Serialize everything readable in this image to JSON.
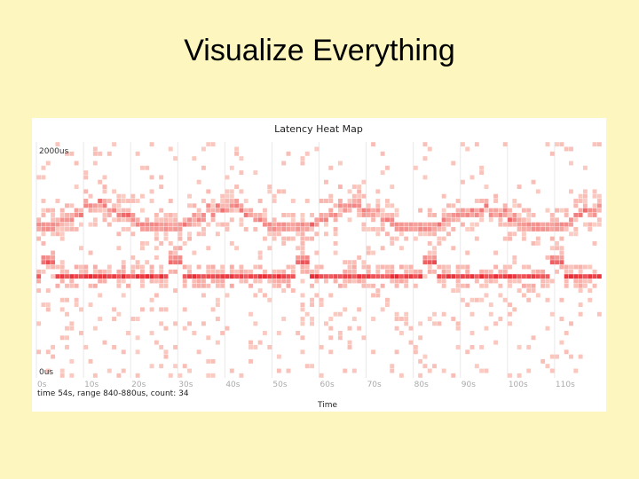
{
  "slide": {
    "title": "Visualize Everything"
  },
  "chart_data": {
    "type": "heatmap",
    "title": "Latency Heat Map",
    "xlabel": "Time",
    "ylabel": "",
    "x_unit": "s",
    "y_unit": "us",
    "x_range": [
      0,
      120
    ],
    "y_range": [
      0,
      2000
    ],
    "x_ticks": [
      "0s",
      "10s",
      "20s",
      "30s",
      "40s",
      "50s",
      "60s",
      "70s",
      "80s",
      "90s",
      "100s",
      "110s"
    ],
    "y_labels": {
      "top": "2000us",
      "bottom": "0us"
    },
    "bin_seconds": 1,
    "bin_us": 40,
    "grid": true,
    "colors": {
      "low": "#fde4d8",
      "high": "#e8202a"
    },
    "bands": [
      {
        "name": "lower",
        "base_us": 860,
        "amplitude_us": 0,
        "intensity": 0.95
      },
      {
        "name": "upper",
        "base_us": 1280,
        "amplitude_us": 180,
        "period_s": 27,
        "intensity": 0.7
      }
    ],
    "outliers": {
      "frequency": 0.13,
      "intensity": 0.12
    },
    "status": "time 54s, range 840-880us, count: 34"
  }
}
